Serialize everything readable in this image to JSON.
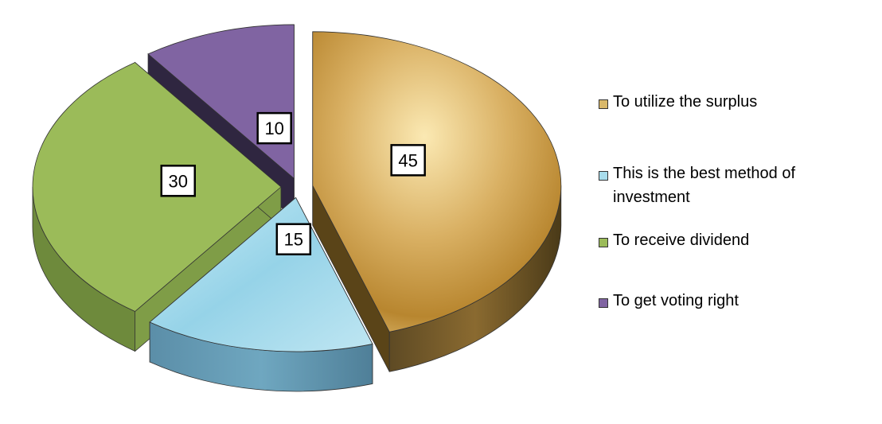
{
  "chart_data": {
    "type": "pie",
    "categories": [
      "To utilize the surplus",
      "This is the best method of investment",
      "To receive dividend",
      "To get voting right"
    ],
    "values": [
      45,
      15,
      30,
      10
    ],
    "data_labels": [
      "45",
      "15",
      "30",
      "10"
    ],
    "colors": [
      "#d9b86a",
      "#8fd0e6",
      "#9bbb59",
      "#8064a2"
    ],
    "exploded": true,
    "three_d": true,
    "legend_position": "right"
  },
  "legend": {
    "items": [
      {
        "label": "To utilize the surplus",
        "color": "#d9b86a"
      },
      {
        "label": "This is the best method of investment",
        "color": "#a8dcec"
      },
      {
        "label": "To receive dividend",
        "color": "#9bbb59"
      },
      {
        "label": "To get voting right",
        "color": "#8064a2"
      }
    ]
  }
}
